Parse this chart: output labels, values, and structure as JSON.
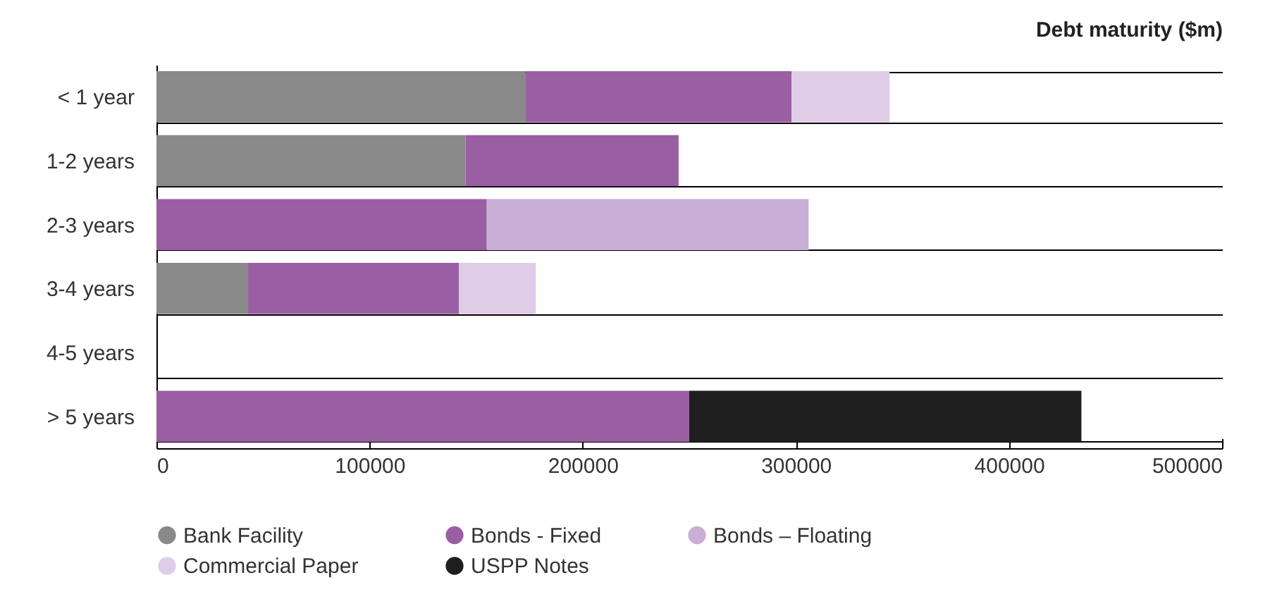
{
  "chart_data": {
    "type": "bar",
    "orientation": "horizontal",
    "stacked": true,
    "title": "Debt maturity ($m)",
    "categories": [
      "< 1 year",
      "1-2 years",
      "2-3 years",
      "3-4 years",
      "4-5 years",
      "> 5 years"
    ],
    "series": [
      {
        "name": "Bank Facility",
        "color": "#898989",
        "values": [
          173000,
          145000,
          null,
          43000,
          null,
          null
        ]
      },
      {
        "name": "Bonds - Fixed",
        "color": "#9a5fa3",
        "values": [
          125000,
          100000,
          155000,
          99000,
          null,
          250000
        ]
      },
      {
        "name": "Bonds – Floating",
        "color": "#c9aed5",
        "values": [
          null,
          null,
          151000,
          null,
          null,
          null
        ]
      },
      {
        "name": "Commercial Paper",
        "color": "#dfcde7",
        "values": [
          46000,
          null,
          null,
          36000,
          null,
          null
        ]
      },
      {
        "name": "USPP Notes",
        "color": "#1e1e1e",
        "values": [
          null,
          null,
          null,
          null,
          null,
          184000
        ]
      }
    ],
    "xlim": [
      0,
      500000
    ],
    "xticks": [
      0,
      100000,
      200000,
      300000,
      400000,
      500000
    ],
    "grid": "y",
    "legend": "bottom"
  }
}
